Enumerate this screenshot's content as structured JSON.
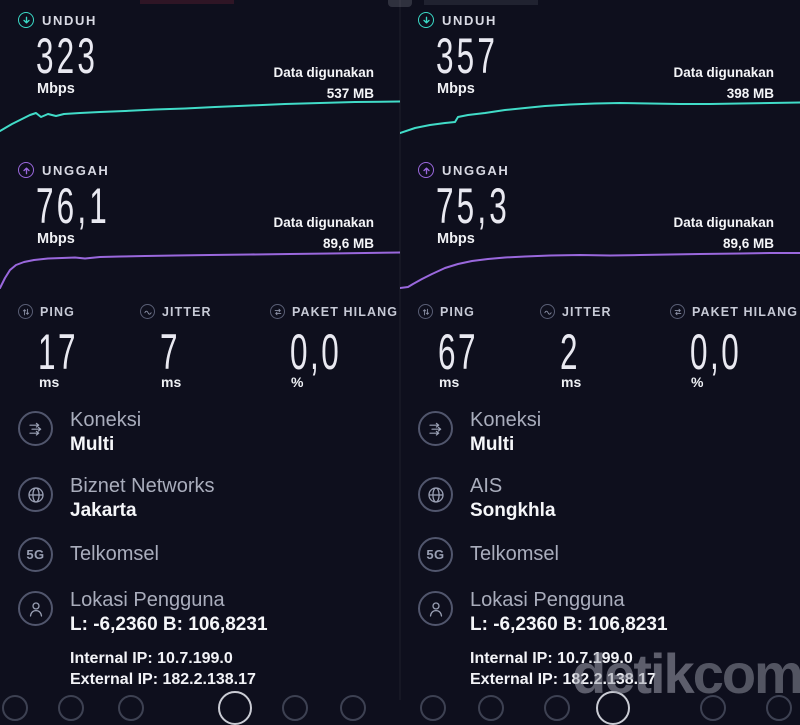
{
  "colors": {
    "background": "#0e0f1d",
    "download_accent": "#3ad9c6",
    "upload_accent": "#9a68dd",
    "text_primary": "#f5f6f9",
    "text_secondary": "#a9adbc",
    "watermark": "#9aa1ad"
  },
  "panels": [
    {
      "download": {
        "label": "UNDUH",
        "value": "323",
        "unit": "Mbps",
        "data_used_label": "Data digunakan",
        "data_used_value": "537 MB"
      },
      "upload": {
        "label": "UNGGAH",
        "value": "76,1",
        "unit": "Mbps",
        "data_used_label": "Data digunakan",
        "data_used_value": "89,6 MB"
      },
      "metrics": [
        {
          "label": "PING",
          "value": "17",
          "unit": "ms"
        },
        {
          "label": "JITTER",
          "value": "7",
          "unit": "ms"
        },
        {
          "label": "PAKET HILANG",
          "value": "0,0",
          "unit": "%"
        }
      ],
      "connection": {
        "title": "Koneksi",
        "value": "Multi"
      },
      "server": {
        "title": "Biznet Networks",
        "value": "Jakarta"
      },
      "network": {
        "title": "Telkomsel",
        "badge": "5G"
      },
      "location": {
        "title": "Lokasi Pengguna",
        "value": "L: -6,2360 B: 106,8231"
      },
      "internal_ip": "Internal IP: 10.7.199.0",
      "external_ip": "External IP: 182.2.138.17"
    },
    {
      "download": {
        "label": "UNDUH",
        "value": "357",
        "unit": "Mbps",
        "data_used_label": "Data digunakan",
        "data_used_value": "398 MB"
      },
      "upload": {
        "label": "UNGGAH",
        "value": "75,3",
        "unit": "Mbps",
        "data_used_label": "Data digunakan",
        "data_used_value": "89,6 MB"
      },
      "metrics": [
        {
          "label": "PING",
          "value": "67",
          "unit": "ms"
        },
        {
          "label": "JITTER",
          "value": "2",
          "unit": "ms"
        },
        {
          "label": "PAKET HILANG",
          "value": "0,0",
          "unit": "%"
        }
      ],
      "connection": {
        "title": "Koneksi",
        "value": "Multi"
      },
      "server": {
        "title": "AIS",
        "value": "Songkhla"
      },
      "network": {
        "title": "Telkomsel",
        "badge": "5G"
      },
      "location": {
        "title": "Lokasi Pengguna",
        "value": "L: -6,2360 B: 106,8231"
      },
      "internal_ip": "Internal IP: 10.7.199.0",
      "external_ip": "External IP: 182.2.138.17"
    }
  ],
  "watermark": {
    "bold_part": "detik",
    "light_part": "com"
  },
  "charts": {
    "left_download": [
      [
        0,
        31
      ],
      [
        12,
        24
      ],
      [
        22,
        19
      ],
      [
        30,
        15
      ],
      [
        36,
        13
      ],
      [
        41,
        17
      ],
      [
        48,
        14
      ],
      [
        56,
        16
      ],
      [
        64,
        14
      ],
      [
        80,
        13
      ],
      [
        100,
        12
      ],
      [
        125,
        11
      ],
      [
        155,
        9.5
      ],
      [
        185,
        8.5
      ],
      [
        215,
        7
      ],
      [
        250,
        5.5
      ],
      [
        285,
        4
      ],
      [
        320,
        3
      ],
      [
        355,
        2
      ],
      [
        400,
        1.5
      ]
    ],
    "right_download": [
      [
        0,
        33
      ],
      [
        15,
        28
      ],
      [
        30,
        25
      ],
      [
        45,
        23
      ],
      [
        55,
        22
      ],
      [
        58,
        17
      ],
      [
        68,
        15
      ],
      [
        85,
        13
      ],
      [
        105,
        10
      ],
      [
        125,
        8
      ],
      [
        145,
        6
      ],
      [
        170,
        4.5
      ],
      [
        195,
        3.5
      ],
      [
        220,
        3
      ],
      [
        250,
        3.5
      ],
      [
        280,
        4
      ],
      [
        310,
        4
      ],
      [
        340,
        3.5
      ],
      [
        370,
        3
      ],
      [
        400,
        2.5
      ]
    ],
    "left_upload": [
      [
        0,
        38
      ],
      [
        5,
        28
      ],
      [
        10,
        20
      ],
      [
        16,
        15
      ],
      [
        24,
        12
      ],
      [
        34,
        10
      ],
      [
        48,
        8.5
      ],
      [
        62,
        8
      ],
      [
        75,
        7.5
      ],
      [
        85,
        8.5
      ],
      [
        100,
        7
      ],
      [
        120,
        6.5
      ],
      [
        145,
        6
      ],
      [
        175,
        5.5
      ],
      [
        210,
        5
      ],
      [
        250,
        4.5
      ],
      [
        290,
        4
      ],
      [
        330,
        3.5
      ],
      [
        365,
        3
      ],
      [
        400,
        2.5
      ]
    ],
    "right_upload": [
      [
        0,
        38
      ],
      [
        8,
        37
      ],
      [
        13,
        34
      ],
      [
        22,
        29
      ],
      [
        32,
        24
      ],
      [
        45,
        18
      ],
      [
        58,
        14
      ],
      [
        72,
        11
      ],
      [
        88,
        9
      ],
      [
        105,
        7.5
      ],
      [
        125,
        6.5
      ],
      [
        150,
        5.5
      ],
      [
        180,
        5
      ],
      [
        210,
        5.5
      ],
      [
        240,
        5
      ],
      [
        270,
        4.5
      ],
      [
        300,
        4
      ],
      [
        340,
        3.5
      ],
      [
        370,
        3
      ],
      [
        400,
        3
      ]
    ]
  }
}
